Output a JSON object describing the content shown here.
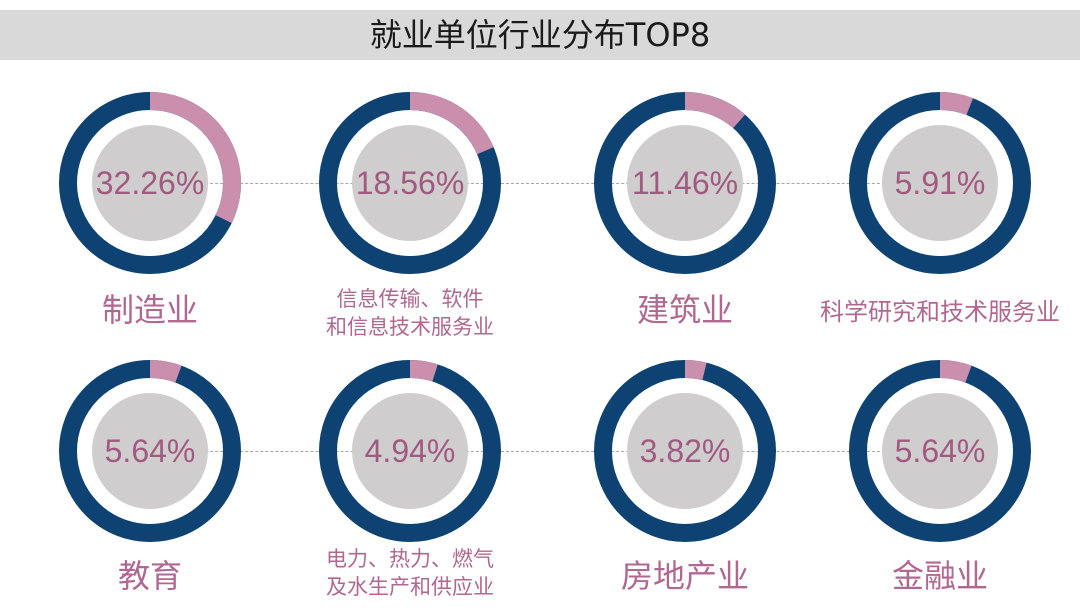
{
  "title": "就业单位行业分布TOP8",
  "colors": {
    "ring": "#0e4272",
    "highlight": "#c98fac",
    "center": "#d0cdcf",
    "text": "#a05a80",
    "title_bar": "#d9d9d9"
  },
  "chart_data": {
    "type": "pie",
    "title": "就业单位行业分布TOP8",
    "units": "%",
    "items": [
      {
        "name": "制造业",
        "value": 32.26,
        "display": "32.26%"
      },
      {
        "name": "信息传输、软件和信息技术服务业",
        "value": 18.56,
        "display": "18.56%"
      },
      {
        "name": "建筑业",
        "value": 11.46,
        "display": "11.46%"
      },
      {
        "name": "科学研究和技术服务业",
        "value": 5.91,
        "display": "5.91%"
      },
      {
        "name": "教育",
        "value": 5.64,
        "display": "5.64%"
      },
      {
        "name": "电力、热力、燃气及水生产和供应业",
        "value": 4.94,
        "display": "4.94%"
      },
      {
        "name": "房地产业",
        "value": 3.82,
        "display": "3.82%"
      },
      {
        "name": "金融业",
        "value": 5.64,
        "display": "5.64%"
      }
    ]
  },
  "labels": [
    [
      "制造业"
    ],
    [
      "信息传输、软件",
      "和信息技术服务业"
    ],
    [
      "建筑业"
    ],
    [
      "科学研究和技术服务业"
    ],
    [
      "教育"
    ],
    [
      "电力、热力、燃气",
      "及水生产和供应业"
    ],
    [
      "房地产业"
    ],
    [
      "金融业"
    ]
  ]
}
